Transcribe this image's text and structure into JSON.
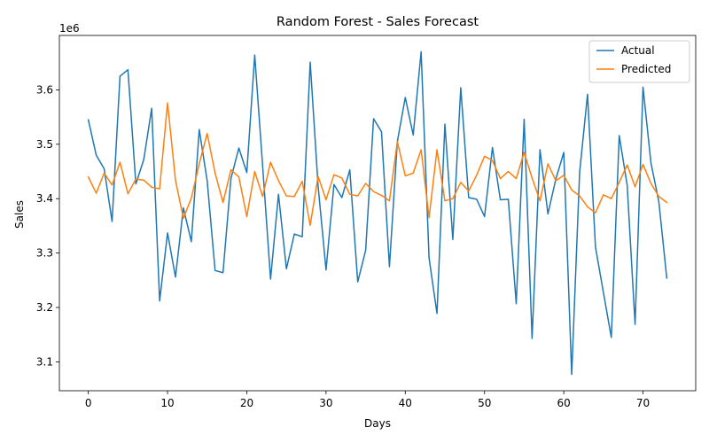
{
  "chart_data": {
    "type": "line",
    "title": "Random Forest - Sales Forecast",
    "xlabel": "Days",
    "ylabel": "Sales",
    "y_offset_label": "1e6",
    "y_scale": 1000000,
    "xlim": [
      -3.65,
      76.65
    ],
    "ylim": [
      3047000,
      3700000
    ],
    "x_ticks": [
      0,
      10,
      20,
      30,
      40,
      50,
      60,
      70
    ],
    "y_ticks": [
      3.1,
      3.2,
      3.3,
      3.4,
      3.5,
      3.6
    ],
    "grid": false,
    "legend_position": "top-right",
    "x": [
      0,
      1,
      2,
      3,
      4,
      5,
      6,
      7,
      8,
      9,
      10,
      11,
      12,
      13,
      14,
      15,
      16,
      17,
      18,
      19,
      20,
      21,
      22,
      23,
      24,
      25,
      26,
      27,
      28,
      29,
      30,
      31,
      32,
      33,
      34,
      35,
      36,
      37,
      38,
      39,
      40,
      41,
      42,
      43,
      44,
      45,
      46,
      47,
      48,
      49,
      50,
      51,
      52,
      53,
      54,
      55,
      56,
      57,
      58,
      59,
      60,
      61,
      62,
      63,
      64,
      65,
      66,
      67,
      68,
      69,
      70,
      71,
      72,
      73
    ],
    "series": [
      {
        "name": "Actual",
        "color": "#1f77b4",
        "values": [
          3545000,
          3480000,
          3455000,
          3358000,
          3625000,
          3637000,
          3427000,
          3472000,
          3566000,
          3212000,
          3337000,
          3256000,
          3383000,
          3321000,
          3527000,
          3433000,
          3268000,
          3264000,
          3437000,
          3493000,
          3448000,
          3664000,
          3460000,
          3252000,
          3408000,
          3271000,
          3335000,
          3330000,
          3651000,
          3423000,
          3269000,
          3426000,
          3402000,
          3453000,
          3247000,
          3305000,
          3547000,
          3523000,
          3275000,
          3505000,
          3586000,
          3517000,
          3670000,
          3291000,
          3189000,
          3537000,
          3325000,
          3604000,
          3402000,
          3399000,
          3367000,
          3494000,
          3398000,
          3399000,
          3207000,
          3546000,
          3143000,
          3490000,
          3372000,
          3436000,
          3485000,
          3077000,
          3448000,
          3592000,
          3311000,
          3228000,
          3145000,
          3516000,
          3425000,
          3169000,
          3605000,
          3466000,
          3394000,
          3254000
        ]
      },
      {
        "name": "Predicted",
        "color": "#ff7f0e",
        "values": [
          3440000,
          3410000,
          3447000,
          3425000,
          3467000,
          3409000,
          3436000,
          3434000,
          3421000,
          3418000,
          3576000,
          3434000,
          3364000,
          3401000,
          3464000,
          3520000,
          3447000,
          3393000,
          3453000,
          3440000,
          3367000,
          3450000,
          3404000,
          3467000,
          3433000,
          3405000,
          3404000,
          3432000,
          3351000,
          3441000,
          3398000,
          3444000,
          3438000,
          3408000,
          3405000,
          3428000,
          3413000,
          3406000,
          3396000,
          3505000,
          3442000,
          3447000,
          3490000,
          3365000,
          3490000,
          3396000,
          3400000,
          3430000,
          3414000,
          3443000,
          3478000,
          3470000,
          3437000,
          3450000,
          3437000,
          3485000,
          3438000,
          3396000,
          3464000,
          3433000,
          3443000,
          3416000,
          3405000,
          3385000,
          3374000,
          3407000,
          3400000,
          3430000,
          3462000,
          3422000,
          3463000,
          3428000,
          3404000,
          3393000
        ]
      }
    ]
  }
}
